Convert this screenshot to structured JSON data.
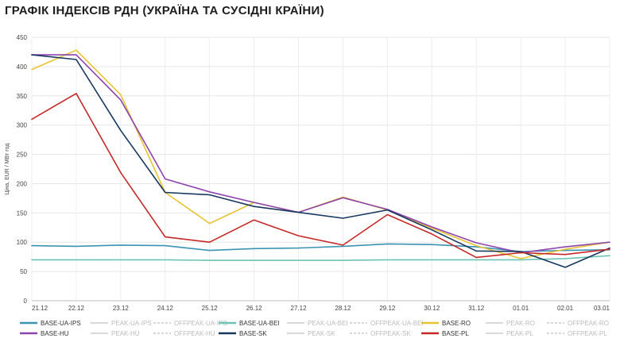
{
  "title": "ГРАФІК ІНДЕКСІВ РДН (УКРАЇНА ТА СУСІДНІ КРАЇНИ)",
  "chart_data": {
    "type": "line",
    "title": "ГРАФІК ІНДЕКСІВ РДН (УКРАЇНА ТА СУСІДНІ КРАЇНИ)",
    "xlabel": "",
    "ylabel": "Ціна, EUR / МВт год",
    "ylim": [
      0,
      450
    ],
    "yticks": [
      0,
      50,
      100,
      150,
      200,
      250,
      300,
      350,
      400,
      450
    ],
    "grid": true,
    "legend_position": "bottom",
    "x": [
      "21.12",
      "22.12",
      "23.12",
      "24.12",
      "25.12",
      "26.12",
      "27.12",
      "28.12",
      "29.12",
      "30.12",
      "31.12",
      "01.01",
      "02.01",
      "03.01"
    ],
    "series": [
      {
        "name": "BASE-UA-IPS",
        "color": "#3b93b4",
        "values": [
          94,
          93,
          95,
          94,
          86,
          89,
          90,
          93,
          97,
          96,
          92,
          84,
          86,
          87
        ]
      },
      {
        "name": "BASE-UA-BEI",
        "color": "#6cc3b5",
        "values": [
          70,
          70,
          70,
          70,
          69,
          69,
          69,
          69,
          70,
          70,
          70,
          70,
          72,
          77
        ]
      },
      {
        "name": "BASE-RO",
        "color": "#e8c433",
        "values": [
          395,
          428,
          352,
          185,
          132,
          168,
          151,
          177,
          155,
          124,
          94,
          72,
          88,
          100
        ]
      },
      {
        "name": "BASE-HU",
        "color": "#8e44ad",
        "values": [
          420,
          420,
          343,
          208,
          186,
          168,
          151,
          176,
          156,
          126,
          99,
          82,
          92,
          100
        ]
      },
      {
        "name": "BASE-SK",
        "color": "#17375e",
        "values": [
          420,
          412,
          291,
          185,
          181,
          161,
          151,
          141,
          155,
          121,
          85,
          84,
          57,
          90
        ]
      },
      {
        "name": "BASE-PL",
        "color": "#c62828",
        "values": [
          310,
          354,
          219,
          109,
          100,
          138,
          111,
          95,
          147,
          114,
          74,
          82,
          79,
          88
        ]
      }
    ],
    "legend": [
      {
        "name": "BASE-UA-IPS",
        "style": "solid",
        "color": "#3b93b4",
        "active": true
      },
      {
        "name": "PEAK-UA-IPS",
        "style": "solid",
        "color": "#cccccc",
        "active": false
      },
      {
        "name": "OFFPEAK-UA-IPS",
        "style": "dashed",
        "color": "#cccccc",
        "active": false
      },
      {
        "name": "BASE-UA-BEI",
        "style": "solid",
        "color": "#6cc3b5",
        "active": true
      },
      {
        "name": "PEAK-UA-BEI",
        "style": "solid",
        "color": "#cccccc",
        "active": false
      },
      {
        "name": "OFFPEAK-UA-BEI",
        "style": "dashed",
        "color": "#cccccc",
        "active": false
      },
      {
        "name": "BASE-RO",
        "style": "solid",
        "color": "#e8c433",
        "active": true
      },
      {
        "name": "PEAK-RO",
        "style": "solid",
        "color": "#cccccc",
        "active": false
      },
      {
        "name": "OFFPEAK-RO",
        "style": "dashed",
        "color": "#cccccc",
        "active": false
      },
      {
        "name": "BASE-HU",
        "style": "solid",
        "color": "#8e44ad",
        "active": true
      },
      {
        "name": "PEAK-HU",
        "style": "solid",
        "color": "#cccccc",
        "active": false
      },
      {
        "name": "OFFPEAK-HU",
        "style": "dashed",
        "color": "#cccccc",
        "active": false
      },
      {
        "name": "BASE-SK",
        "style": "solid",
        "color": "#17375e",
        "active": true
      },
      {
        "name": "PEAK-SK",
        "style": "solid",
        "color": "#cccccc",
        "active": false
      },
      {
        "name": "OFFPEAK-SK",
        "style": "dashed",
        "color": "#cccccc",
        "active": false
      },
      {
        "name": "BASE-PL",
        "style": "solid",
        "color": "#c62828",
        "active": true
      },
      {
        "name": "PEAK-PL",
        "style": "solid",
        "color": "#cccccc",
        "active": false
      },
      {
        "name": "OFFPEAK-PL",
        "style": "dashed",
        "color": "#cccccc",
        "active": false
      }
    ]
  }
}
